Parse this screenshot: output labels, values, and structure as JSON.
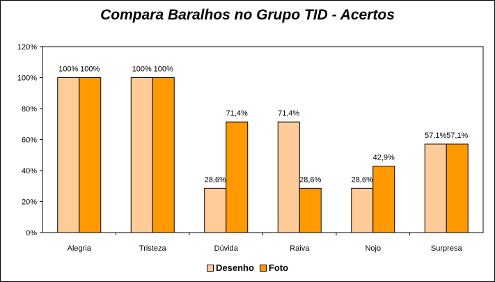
{
  "chart_data": {
    "type": "bar",
    "title": "Compara Baralhos no Grupo TID - Acertos",
    "categories": [
      "Alegria",
      "Tristeza",
      "Dúvida",
      "Raiva",
      "Nojo",
      "Surpresa"
    ],
    "series": [
      {
        "name": "Desenho",
        "color": "#FFCC99",
        "values": [
          100,
          100,
          28.6,
          71.4,
          28.6,
          57.1
        ],
        "labels": [
          "100%",
          "100%",
          "28,6%",
          "71,4%",
          "28,6%",
          "57,1%"
        ]
      },
      {
        "name": "Foto",
        "color": "#FF9900",
        "values": [
          100,
          100,
          71.4,
          28.6,
          42.9,
          57.1
        ],
        "labels": [
          "100%",
          "100%",
          "71,4%",
          "28,6%",
          "42,9%",
          "57,1%"
        ]
      }
    ],
    "y_ticks": [
      "0%",
      "20%",
      "40%",
      "60%",
      "80%",
      "100%",
      "120%"
    ],
    "ylim": [
      0,
      120
    ],
    "grid": false,
    "legend_position": "bottom"
  }
}
